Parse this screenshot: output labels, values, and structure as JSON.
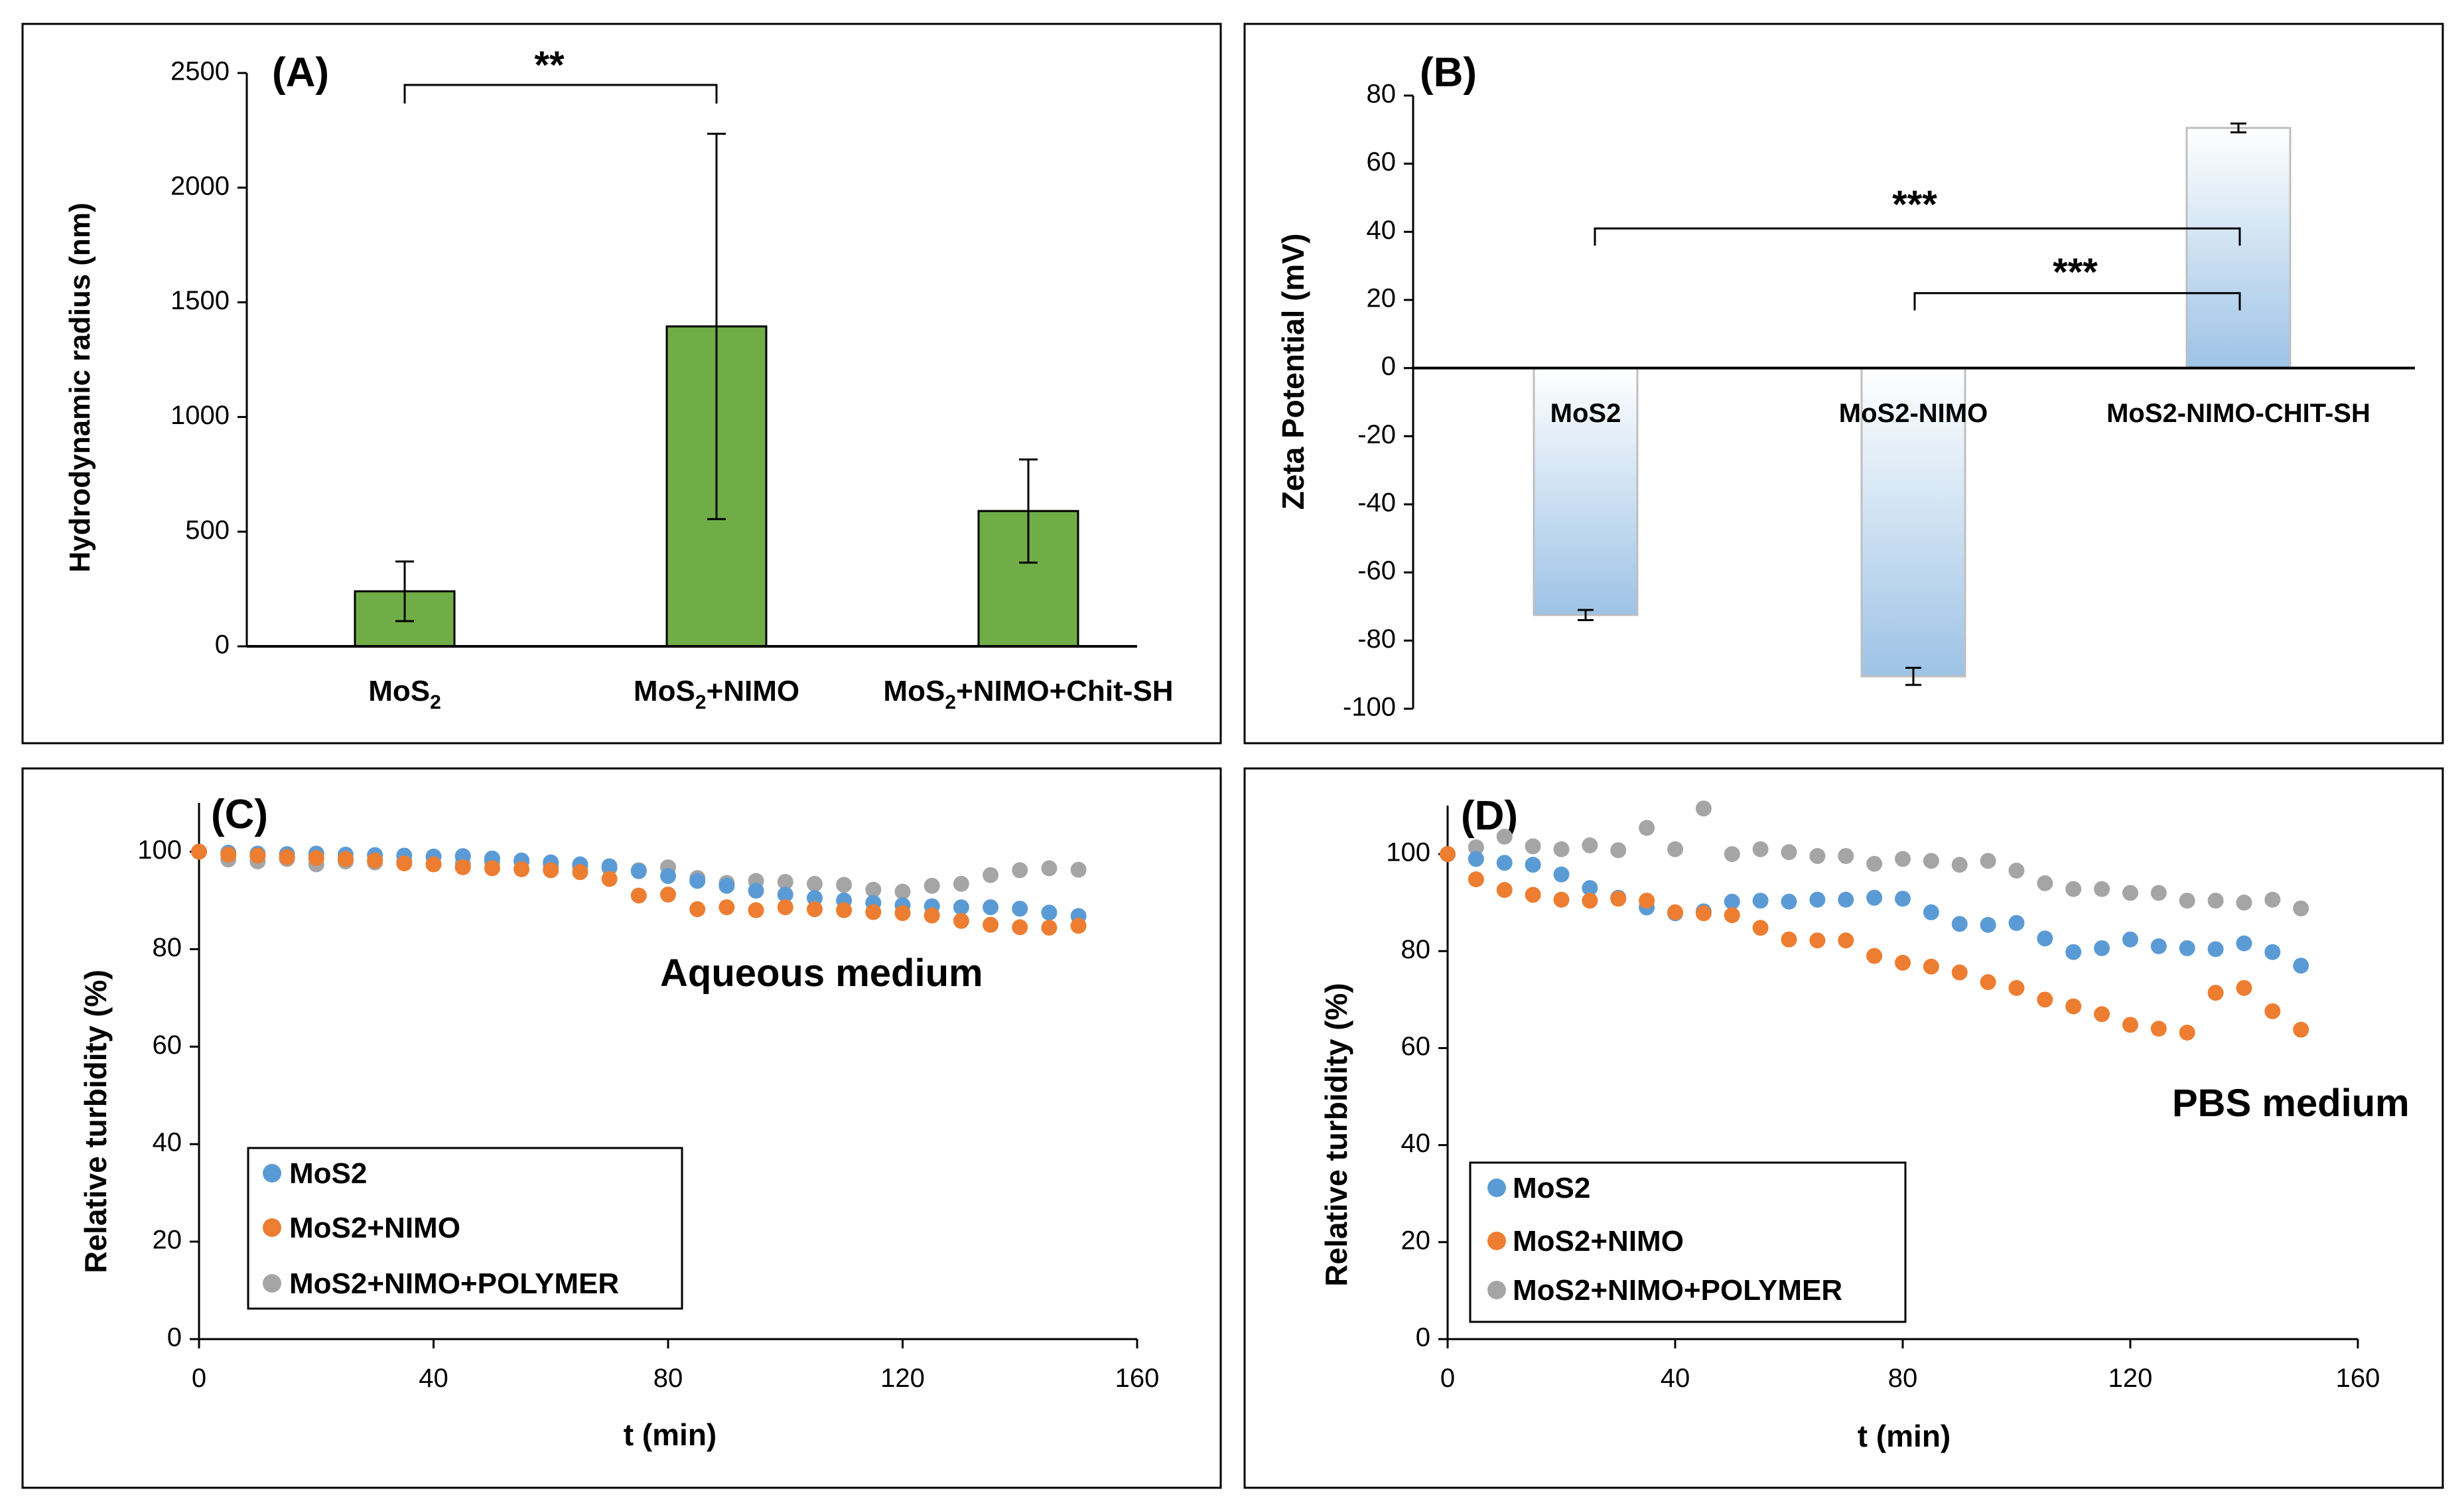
{
  "colors": {
    "green_bar": "#70AD47",
    "blue_dot": "#5B9BD5",
    "orange_dot": "#ED7D31",
    "gray_dot": "#A5A5A5",
    "zeta_bar_top": "#FFFFFF",
    "zeta_bar_bottom": "#9DC3E6",
    "frame": "#000000"
  },
  "chart_data": [
    {
      "id": "A",
      "type": "bar",
      "panel_label": "(A)",
      "title": "",
      "ylabel": "Hydrodynamic radius (nm)",
      "xlabel": "",
      "ylim": [
        0,
        2500
      ],
      "yticks": [
        0,
        500,
        1000,
        1500,
        2000,
        2500
      ],
      "categories": [
        {
          "label": "MoS",
          "sub": "2",
          "rest": ""
        },
        {
          "label": "MoS",
          "sub": "2",
          "rest": "+NIMO"
        },
        {
          "label": "MoS",
          "sub": "2",
          "rest": "+NIMO+Chit-SH"
        }
      ],
      "values": [
        240,
        1395,
        590
      ],
      "errors": [
        130,
        840,
        225
      ],
      "significance": [
        {
          "from": 0,
          "to": 1,
          "label": "**"
        }
      ]
    },
    {
      "id": "B",
      "type": "bar",
      "panel_label": "(B)",
      "title": "",
      "ylabel": "Zeta Potential (mV)",
      "xlabel": "",
      "ylim": [
        -100,
        80
      ],
      "yticks": [
        -100,
        -80,
        -60,
        -40,
        -20,
        0,
        20,
        40,
        60,
        80
      ],
      "categories": [
        "MoS2",
        "MoS2-NIMO",
        "MoS2-NIMO-CHIT-SH"
      ],
      "values": [
        -72.5,
        -90.5,
        70.5
      ],
      "errors": [
        1.5,
        2.5,
        1.3
      ],
      "significance": [
        {
          "from": 0,
          "to": 2,
          "label": "***"
        },
        {
          "from": 1,
          "to": 2,
          "label": "***"
        }
      ]
    },
    {
      "id": "C",
      "type": "scatter",
      "panel_label": "(C)",
      "annotation": "Aqueous medium",
      "xlabel": "t (min)",
      "ylabel": "Relative turbidity (%)",
      "xlim": [
        0,
        160
      ],
      "ylim": [
        0,
        110
      ],
      "xticks": [
        0,
        40,
        80,
        120,
        160
      ],
      "yticks": [
        0,
        20,
        40,
        60,
        80,
        100
      ],
      "x": [
        0,
        5,
        10,
        15,
        20,
        25,
        30,
        35,
        40,
        45,
        50,
        55,
        60,
        65,
        70,
        75,
        80,
        85,
        90,
        95,
        100,
        105,
        110,
        115,
        120,
        125,
        130,
        135,
        140,
        145,
        150
      ],
      "series": [
        {
          "name": "MoS2",
          "color_key": "blue_dot",
          "values": [
            100,
            99.8,
            99.6,
            99.5,
            99.6,
            99.4,
            99.3,
            99.2,
            99.0,
            99.1,
            98.6,
            98.2,
            97.8,
            97.4,
            97.0,
            96.0,
            95.0,
            94.0,
            93.0,
            92.0,
            91.2,
            90.5,
            90.0,
            89.5,
            89.0,
            88.8,
            88.6,
            88.6,
            88.3,
            87.5,
            86.8
          ]
        },
        {
          "name": "MoS2+NIMO",
          "color_key": "orange_dot",
          "values": [
            100,
            99.4,
            99.2,
            98.9,
            98.7,
            98.5,
            98.2,
            97.6,
            97.4,
            96.8,
            96.6,
            96.4,
            96.2,
            95.8,
            94.4,
            91.0,
            91.2,
            88.2,
            88.6,
            88.0,
            88.6,
            88.2,
            88.0,
            87.6,
            87.4,
            86.9,
            85.8,
            85.0,
            84.5,
            84.4,
            84.8
          ]
        },
        {
          "name": "MoS2+NIMO+POLYMER",
          "color_key": "gray_dot",
          "values": [
            100,
            98.4,
            98.0,
            98.5,
            97.4,
            98.0,
            97.8,
            98.0,
            97.5,
            97.6,
            97.8,
            98.0,
            97.2,
            97.0,
            96.6,
            96.2,
            96.8,
            94.6,
            93.6,
            94.0,
            93.8,
            93.4,
            93.2,
            92.2,
            91.8,
            93.0,
            93.4,
            95.2,
            96.2,
            96.6,
            96.3
          ]
        }
      ]
    },
    {
      "id": "D",
      "type": "scatter",
      "panel_label": "(D)",
      "annotation": "PBS medium",
      "xlabel": "t (min)",
      "ylabel": "Relative turbidity (%)",
      "xlim": [
        0,
        160
      ],
      "ylim": [
        0,
        110
      ],
      "xticks": [
        0,
        40,
        80,
        120,
        160
      ],
      "yticks": [
        0,
        20,
        40,
        60,
        80,
        100
      ],
      "x": [
        0,
        5,
        10,
        15,
        20,
        25,
        30,
        35,
        40,
        45,
        50,
        55,
        60,
        65,
        70,
        75,
        80,
        85,
        90,
        95,
        100,
        105,
        110,
        115,
        120,
        125,
        130,
        135,
        140,
        145,
        150
      ],
      "series": [
        {
          "name": "MoS2",
          "color_key": "blue_dot",
          "values": [
            100,
            99,
            98.2,
            97.8,
            95.8,
            93.0,
            91.0,
            89.0,
            87.8,
            88.2,
            90.2,
            90.4,
            90.2,
            90.6,
            90.6,
            91.0,
            90.8,
            88.0,
            85.6,
            85.4,
            85.8,
            82.6,
            79.8,
            80.6,
            82.4,
            81.0,
            80.6,
            80.4,
            81.6,
            79.8,
            77.0
          ]
        },
        {
          "name": "MoS2+NIMO",
          "color_key": "orange_dot",
          "values": [
            100,
            94.8,
            92.6,
            91.6,
            90.6,
            90.4,
            90.8,
            90.4,
            88.0,
            87.8,
            87.4,
            84.8,
            82.4,
            82.2,
            82.2,
            79.0,
            77.6,
            76.8,
            75.6,
            73.6,
            72.4,
            70.0,
            68.6,
            67.0,
            64.8,
            64.0,
            63.2,
            71.4,
            72.4,
            67.6,
            63.8
          ]
        },
        {
          "name": "MoS2+NIMO+POLYMER",
          "color_key": "gray_dot",
          "values": [
            100,
            101.4,
            103.6,
            101.6,
            101.0,
            101.8,
            100.8,
            105.4,
            101.0,
            109.4,
            100.0,
            101.0,
            100.4,
            99.6,
            99.6,
            98.0,
            99.0,
            98.6,
            97.8,
            98.6,
            96.6,
            94.0,
            92.8,
            92.8,
            92.0,
            92.0,
            90.4,
            90.4,
            90.0,
            90.6,
            88.8
          ]
        }
      ]
    }
  ]
}
